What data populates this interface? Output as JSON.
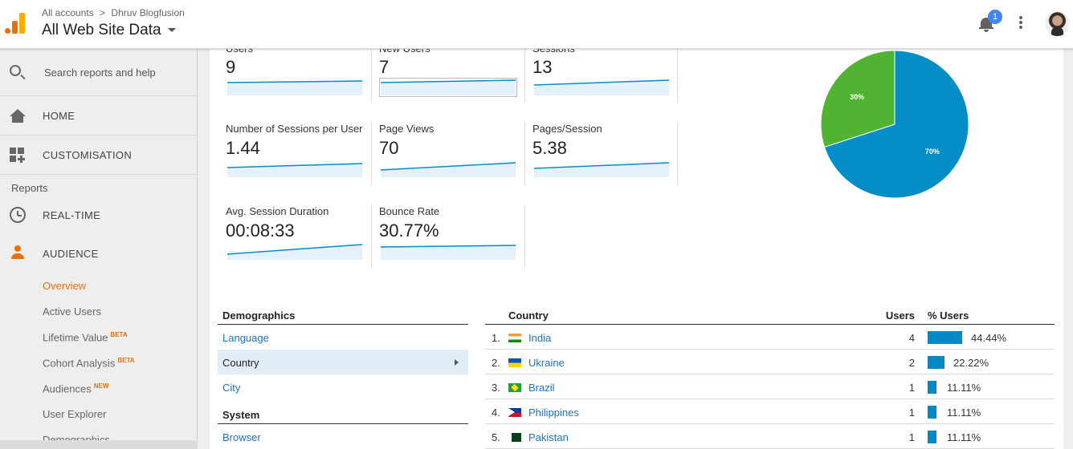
{
  "header": {
    "breadcrumb_root": "All accounts",
    "breadcrumb_sep": ">",
    "account": "Dhruv Blogfusion",
    "property_view": "All Web Site Data",
    "notification_count": "1"
  },
  "sidebar": {
    "search_placeholder": "Search reports and help",
    "home": "HOME",
    "customisation": "CUSTOMISATION",
    "reports_heading": "Reports",
    "realtime": "REAL-TIME",
    "audience": "AUDIENCE",
    "audience_items": [
      {
        "label": "Overview",
        "badge": ""
      },
      {
        "label": "Active Users",
        "badge": ""
      },
      {
        "label": "Lifetime Value",
        "badge": "BETA"
      },
      {
        "label": "Cohort Analysis",
        "badge": "BETA"
      },
      {
        "label": "Audiences",
        "badge": "NEW"
      },
      {
        "label": "User Explorer",
        "badge": ""
      },
      {
        "label": "Demographics",
        "badge": ""
      }
    ]
  },
  "metrics": [
    {
      "label": "Users",
      "value": "9"
    },
    {
      "label": "New Users",
      "value": "7"
    },
    {
      "label": "Sessions",
      "value": "13"
    },
    {
      "label": "Number of Sessions per User",
      "value": "1.44"
    },
    {
      "label": "Page Views",
      "value": "70"
    },
    {
      "label": "Pages/Session",
      "value": "5.38"
    },
    {
      "label": "Avg. Session Duration",
      "value": "00:08:33"
    },
    {
      "label": "Bounce Rate",
      "value": "30.77%"
    }
  ],
  "chart_data": {
    "type": "pie",
    "slices": [
      {
        "label": "70%",
        "value": 70,
        "color": "#058dc7"
      },
      {
        "label": "30%",
        "value": 30,
        "color": "#50b432"
      }
    ]
  },
  "demographics": {
    "heading": "Demographics",
    "items": [
      "Language",
      "Country",
      "City"
    ],
    "selected": "Country",
    "system_heading": "System",
    "system_items": [
      "Browser"
    ]
  },
  "country_table": {
    "col_country": "Country",
    "col_users": "Users",
    "col_pct": "% Users",
    "bar_color": "#0288c7",
    "rows": [
      {
        "rank": "1.",
        "country": "India",
        "flag": "india-flag-icon",
        "users": "4",
        "pct": "44.44%",
        "share": 44.44
      },
      {
        "rank": "2.",
        "country": "Ukraine",
        "flag": "ukraine-flag-icon",
        "users": "2",
        "pct": "22.22%",
        "share": 22.22
      },
      {
        "rank": "3.",
        "country": "Brazil",
        "flag": "brazil-flag-icon",
        "users": "1",
        "pct": "11.11%",
        "share": 11.11
      },
      {
        "rank": "4.",
        "country": "Philippines",
        "flag": "philippines-flag-icon",
        "users": "1",
        "pct": "11.11%",
        "share": 11.11
      },
      {
        "rank": "5.",
        "country": "Pakistan",
        "flag": "pakistan-flag-icon",
        "users": "1",
        "pct": "11.11%",
        "share": 11.11
      }
    ]
  }
}
